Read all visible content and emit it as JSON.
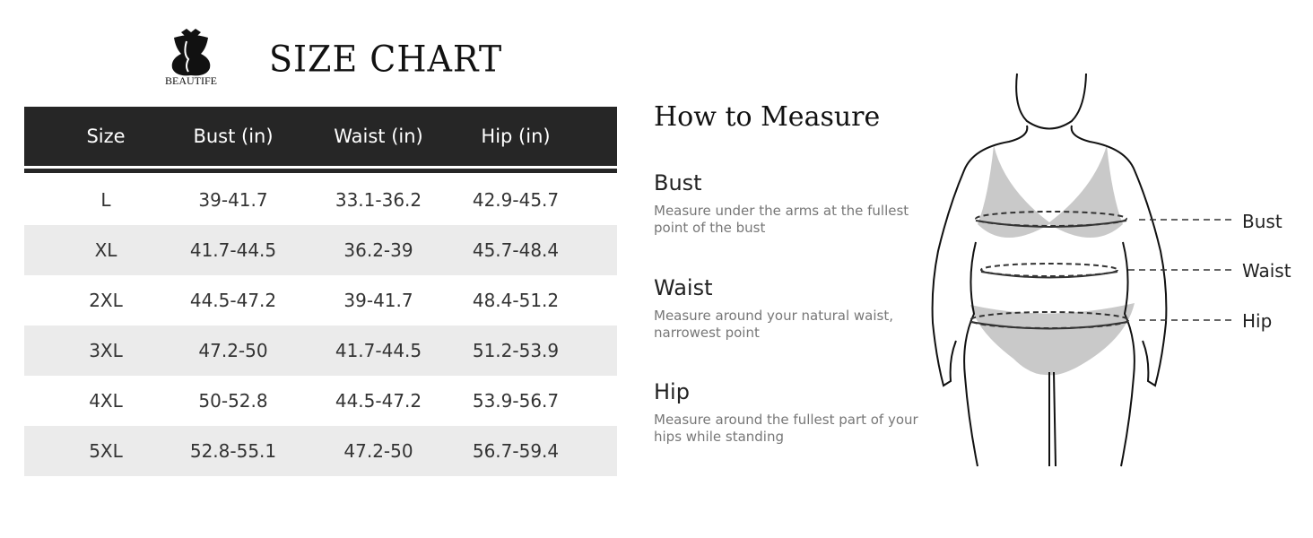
{
  "brand": {
    "name": "BEAUTIFE"
  },
  "title": "SIZE CHART",
  "table": {
    "headers": [
      "Size",
      "Bust (in)",
      "Waist (in)",
      "Hip (in)"
    ],
    "rows": [
      [
        "L",
        "39-41.7",
        "33.1-36.2",
        "42.9-45.7"
      ],
      [
        "XL",
        "41.7-44.5",
        "36.2-39",
        "45.7-48.4"
      ],
      [
        "2XL",
        "44.5-47.2",
        "39-41.7",
        "48.4-51.2"
      ],
      [
        "3XL",
        "47.2-50",
        "41.7-44.5",
        "51.2-53.9"
      ],
      [
        "4XL",
        "50-52.8",
        "44.5-47.2",
        "53.9-56.7"
      ],
      [
        "5XL",
        "52.8-55.1",
        "47.2-50",
        "56.7-59.4"
      ]
    ]
  },
  "how_to_measure": {
    "title": "How to Measure",
    "sections": [
      {
        "name": "Bust",
        "text": "Measure under the arms at the fullest point of the bust"
      },
      {
        "name": "Waist",
        "text": "Measure around your natural waist, narrowest point"
      },
      {
        "name": "Hip",
        "text": "Measure around the fullest part of your hips while standing"
      }
    ],
    "figure_labels": [
      "Bust",
      "Waist",
      "Hip"
    ]
  }
}
